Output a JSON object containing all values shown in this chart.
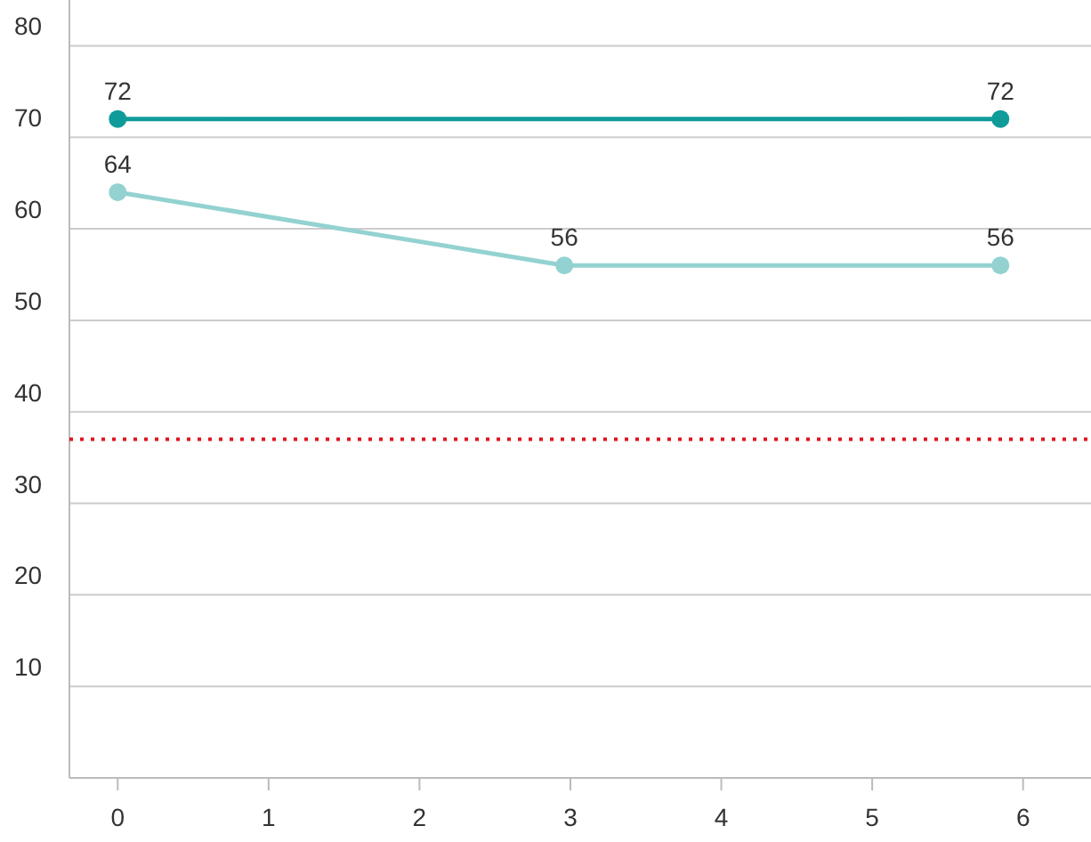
{
  "chart_data": {
    "type": "line",
    "xlim": [
      -0.32,
      6.45
    ],
    "xticks": [
      0,
      1,
      2,
      3,
      4,
      5,
      6
    ],
    "ylim": [
      0,
      85
    ],
    "yticks": [
      10,
      20,
      30,
      40,
      50,
      60,
      70,
      80
    ],
    "grid": "y",
    "marker": "circle",
    "data_labels": true,
    "series": [
      {
        "color": "#109b9b",
        "x": [
          0,
          5.85
        ],
        "values": [
          72,
          72
        ]
      },
      {
        "color": "#93d2d0",
        "x": [
          0,
          2.96,
          5.85
        ],
        "values": [
          64,
          56,
          56
        ]
      }
    ],
    "ref_lines": [
      {
        "axis": "y",
        "value": 37,
        "color": "#e0141e",
        "line_style": "dotted"
      }
    ]
  }
}
